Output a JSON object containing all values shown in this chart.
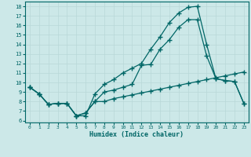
{
  "xlabel": "Humidex (Indice chaleur)",
  "bg_color": "#cce8e8",
  "grid_color": "#b8d8d8",
  "line_color": "#006666",
  "xlim": [
    -0.5,
    23.5
  ],
  "ylim": [
    5.8,
    18.5
  ],
  "xticks": [
    0,
    1,
    2,
    3,
    4,
    5,
    6,
    7,
    8,
    9,
    10,
    11,
    12,
    13,
    14,
    15,
    16,
    17,
    18,
    19,
    20,
    21,
    22,
    23
  ],
  "yticks": [
    6,
    7,
    8,
    9,
    10,
    11,
    12,
    13,
    14,
    15,
    16,
    17,
    18
  ],
  "line1_x": [
    0,
    1,
    2,
    3,
    4,
    5,
    6,
    7,
    8,
    9,
    10,
    11,
    12,
    13,
    14,
    15,
    16,
    17,
    18,
    19,
    20,
    21,
    22,
    23
  ],
  "line1_y": [
    9.5,
    8.8,
    7.7,
    7.8,
    7.8,
    6.5,
    6.8,
    8.0,
    8.0,
    8.3,
    8.5,
    8.7,
    8.9,
    9.1,
    9.3,
    9.5,
    9.7,
    9.9,
    10.1,
    10.3,
    10.5,
    10.7,
    10.9,
    11.1
  ],
  "line2_x": [
    0,
    1,
    2,
    3,
    4,
    5,
    6,
    7,
    8,
    9,
    10,
    11,
    12,
    13,
    14,
    15,
    16,
    17,
    18,
    19,
    20,
    21,
    22,
    23
  ],
  "line2_y": [
    9.5,
    8.8,
    7.7,
    7.8,
    7.8,
    6.5,
    6.8,
    8.0,
    9.0,
    9.2,
    9.5,
    9.8,
    11.8,
    11.9,
    13.5,
    14.5,
    15.8,
    16.6,
    16.6,
    12.8,
    10.4,
    10.2,
    10.1,
    7.8
  ],
  "line3_x": [
    0,
    1,
    2,
    3,
    4,
    5,
    6,
    7,
    8,
    9,
    10,
    11,
    12,
    13,
    14,
    15,
    16,
    17,
    18,
    19,
    20,
    21,
    22,
    23
  ],
  "line3_y": [
    9.5,
    8.8,
    7.7,
    7.8,
    7.8,
    6.5,
    6.5,
    8.8,
    9.8,
    10.3,
    11.0,
    11.5,
    12.0,
    13.5,
    14.8,
    16.3,
    17.3,
    17.9,
    18.0,
    14.0,
    10.4,
    10.2,
    10.1,
    7.8
  ],
  "marker": "+",
  "markersize": 4,
  "linewidth": 0.9
}
